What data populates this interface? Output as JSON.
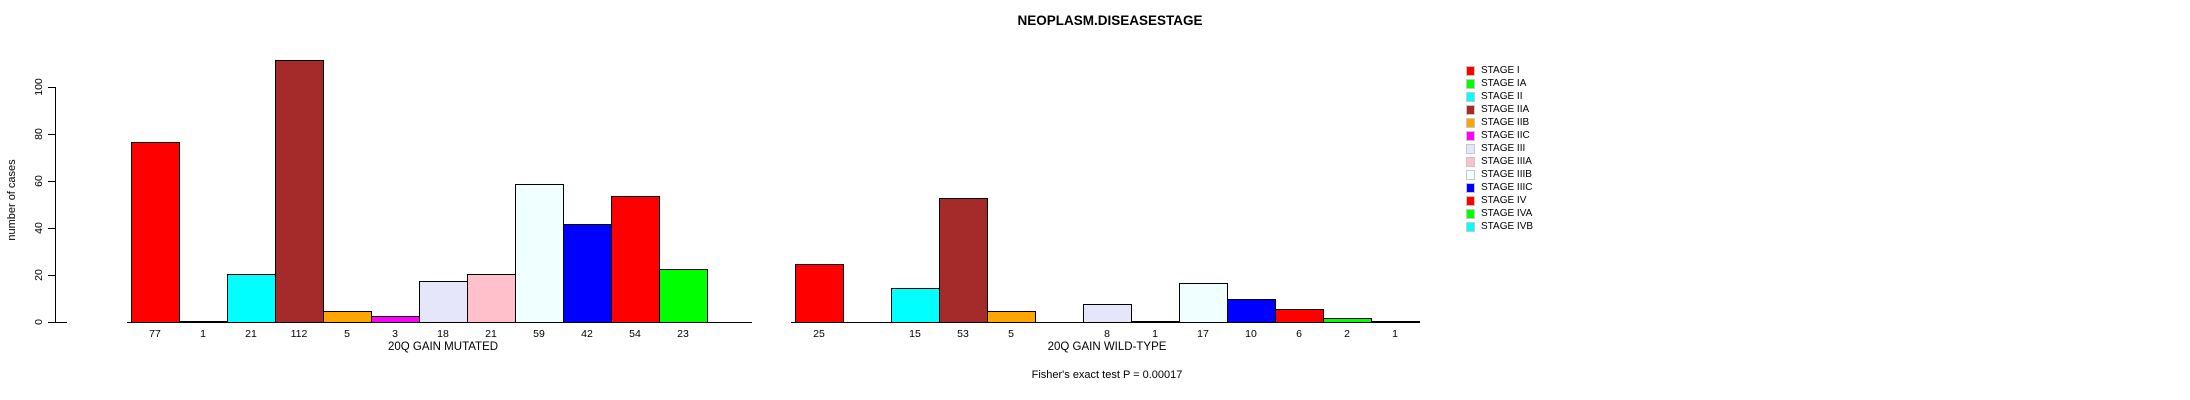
{
  "title": "NEOPLASM.DISEASESTAGE",
  "annotation": "Fisher's exact test P = 0.00017",
  "y_axis": {
    "label": "number of cases",
    "ticks": [
      0,
      20,
      40,
      60,
      80,
      100
    ],
    "tick_labels": [
      "0",
      "20",
      "40",
      "60",
      "80",
      "100"
    ]
  },
  "palette": {
    "red": "#FF0000",
    "green": "#00FF00",
    "cyan": "#00FFFF",
    "brown": "#A52A2A",
    "orange": "#FFA500",
    "magenta": "#FF00FF",
    "lavender": "#E6E6FA",
    "pink": "#FFC0CB",
    "azure": "#F0FFFF",
    "blue": "#0000FF"
  },
  "legend": {
    "position": "right",
    "entries": [
      {
        "label": "STAGE I",
        "color": "#FF0000"
      },
      {
        "label": "STAGE IA",
        "color": "#00FF00"
      },
      {
        "label": "STAGE II",
        "color": "#00FFFF"
      },
      {
        "label": "STAGE IIA",
        "color": "#A52A2A"
      },
      {
        "label": "STAGE IIB",
        "color": "#FFA500"
      },
      {
        "label": "STAGE IIC",
        "color": "#FF00FF"
      },
      {
        "label": "STAGE III",
        "color": "#E6E6FA"
      },
      {
        "label": "STAGE IIIA",
        "color": "#FFC0CB"
      },
      {
        "label": "STAGE IIIB",
        "color": "#F0FFFF"
      },
      {
        "label": "STAGE IIIC",
        "color": "#0000FF"
      },
      {
        "label": "STAGE IV",
        "color": "#FF0000"
      },
      {
        "label": "STAGE IVA",
        "color": "#00FF00"
      },
      {
        "label": "STAGE IVB",
        "color": "#00FFFF"
      }
    ]
  },
  "chart_data": [
    {
      "type": "bar",
      "title": "NEOPLASM.DISEASESTAGE",
      "xlabel": "20Q GAIN MUTATED",
      "ylabel": "number of cases",
      "ylim": [
        0,
        100
      ],
      "grid": false,
      "legend_position": "right",
      "categories": [
        "STAGE I",
        "STAGE IA",
        "STAGE II",
        "STAGE IIA",
        "STAGE IIB",
        "STAGE IIC",
        "STAGE III",
        "STAGE IIIA",
        "STAGE IIIB",
        "STAGE IIIC",
        "STAGE IV",
        "STAGE IVA",
        "STAGE IVB"
      ],
      "values": [
        77,
        1,
        21,
        112,
        5,
        3,
        18,
        21,
        59,
        42,
        54,
        23,
        0
      ],
      "bar_labels": [
        "77",
        "1",
        "21",
        "112",
        "5",
        "3",
        "18",
        "21",
        "59",
        "42",
        "54",
        "23",
        ""
      ],
      "colors": [
        "#FF0000",
        "#00FF00",
        "#00FFFF",
        "#A52A2A",
        "#FFA500",
        "#FF00FF",
        "#E6E6FA",
        "#FFC0CB",
        "#F0FFFF",
        "#0000FF",
        "#FF0000",
        "#00FF00",
        "#00FFFF"
      ]
    },
    {
      "type": "bar",
      "title": "NEOPLASM.DISEASESTAGE",
      "xlabel": "20Q GAIN WILD-TYPE",
      "ylabel": "number of cases",
      "ylim": [
        0,
        100
      ],
      "grid": false,
      "legend_position": "right",
      "categories": [
        "STAGE I",
        "STAGE IA",
        "STAGE II",
        "STAGE IIA",
        "STAGE IIB",
        "STAGE IIC",
        "STAGE III",
        "STAGE IIIA",
        "STAGE IIIB",
        "STAGE IIIC",
        "STAGE IV",
        "STAGE IVA",
        "STAGE IVB"
      ],
      "values": [
        25,
        0,
        15,
        53,
        5,
        0,
        8,
        1,
        17,
        10,
        6,
        2,
        1
      ],
      "bar_labels": [
        "25",
        "",
        "15",
        "53",
        "5",
        "",
        "8",
        "1",
        "17",
        "10",
        "6",
        "2",
        "1"
      ],
      "colors": [
        "#FF0000",
        "#00FF00",
        "#00FFFF",
        "#A52A2A",
        "#FFA500",
        "#FF00FF",
        "#E6E6FA",
        "#FFC0CB",
        "#F0FFFF",
        "#0000FF",
        "#FF0000",
        "#00FF00",
        "#00FFFF"
      ]
    }
  ]
}
